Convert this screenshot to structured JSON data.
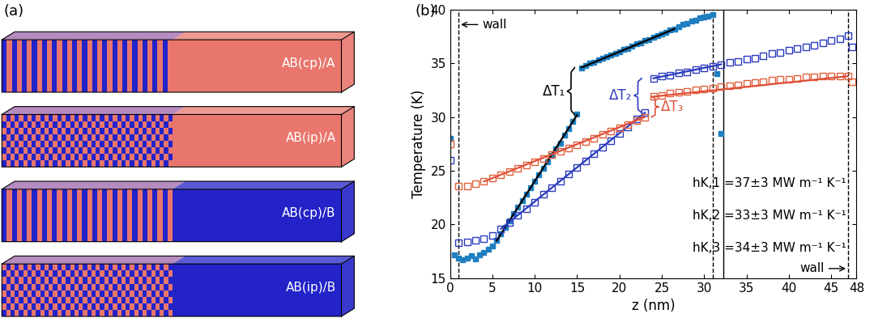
{
  "panel_a": {
    "label": "(a)",
    "boxes": [
      {
        "label": "AB(cp)/A",
        "color": "#e8766d"
      },
      {
        "label": "AB(ip)/A",
        "color": "#e8766d"
      },
      {
        "label": "AB(cp)/B",
        "color": "#2323c8"
      },
      {
        "label": "AB(ip)/B",
        "color": "#2323c8"
      }
    ]
  },
  "chart_data": {
    "type": "scatter",
    "label": "(b)",
    "x_label": "z (nm)",
    "y_label": "Temperature (K)",
    "xlim": [
      0,
      48
    ],
    "xticks": [
      0,
      5,
      10,
      15,
      20,
      25,
      30,
      35,
      40,
      45,
      48
    ],
    "ylim": [
      15,
      40
    ],
    "yticks": [
      15,
      20,
      25,
      30,
      35,
      40
    ],
    "grid": false,
    "series": [
      {
        "color": "#1f7fc0",
        "marker": "filled_square",
        "fit_color": "#000000",
        "x": [
          0.0,
          0.5,
          1.0,
          1.5,
          2.0,
          2.5,
          3.0,
          3.5,
          4.0,
          4.5,
          5.0,
          5.5,
          6.0,
          6.5,
          7.0,
          7.5,
          8.0,
          8.5,
          9.0,
          9.5,
          10.0,
          10.5,
          11.0,
          11.5,
          12.0,
          12.5,
          13.0,
          13.5,
          14.0,
          14.5,
          15.0,
          15.5,
          16.0,
          16.5,
          17.0,
          17.5,
          18.0,
          18.5,
          19.0,
          19.5,
          20.0,
          20.5,
          21.0,
          21.5,
          22.0,
          22.5,
          23.0,
          23.5,
          24.0,
          24.5,
          25.0,
          25.5,
          26.0,
          26.5,
          27.0,
          27.5,
          28.0,
          28.5,
          29.0,
          29.5,
          30.0,
          30.5,
          31.0,
          31.5,
          32.0
        ],
        "values": [
          28.0,
          17.2,
          16.9,
          16.7,
          16.9,
          17.1,
          16.8,
          17.2,
          17.4,
          17.7,
          18.0,
          18.5,
          19.1,
          19.7,
          20.3,
          21.0,
          21.6,
          22.2,
          22.8,
          23.4,
          24.0,
          24.6,
          25.2,
          25.8,
          26.4,
          27.0,
          27.6,
          28.3,
          28.9,
          29.6,
          30.3,
          34.6,
          34.8,
          35.0,
          35.1,
          35.3,
          35.5,
          35.6,
          35.8,
          35.9,
          36.1,
          36.3,
          36.4,
          36.6,
          36.8,
          36.9,
          37.1,
          37.2,
          37.4,
          37.6,
          37.7,
          37.9,
          38.1,
          38.2,
          38.4,
          38.6,
          38.7,
          38.9,
          39.0,
          39.2,
          39.3,
          39.4,
          39.5,
          34.0,
          28.5
        ],
        "fits": [
          {
            "x": [
              5.5,
              15.0
            ],
            "y": [
              18.5,
              30.2
            ]
          },
          {
            "x": [
              15.5,
              26.5
            ],
            "y": [
              34.6,
              38.2
            ]
          }
        ]
      },
      {
        "color": "#2b3bbf",
        "marker": "open_square",
        "fit_color": "#2b3bbf",
        "x": [
          0,
          1,
          2,
          3,
          4,
          5,
          6,
          7,
          8,
          9,
          10,
          11,
          12,
          13,
          14,
          15,
          16,
          17,
          18,
          19,
          20,
          21,
          22,
          23,
          24,
          25,
          26,
          27,
          28,
          29,
          30,
          31,
          32,
          33,
          34,
          35,
          36,
          37,
          38,
          39,
          40,
          41,
          42,
          43,
          44,
          45,
          46,
          47,
          47.5
        ],
        "values": [
          26.0,
          18.3,
          18.4,
          18.5,
          18.7,
          19.0,
          19.6,
          20.2,
          20.9,
          21.5,
          22.1,
          22.8,
          23.4,
          24.0,
          24.7,
          25.3,
          25.9,
          26.6,
          27.2,
          27.8,
          28.5,
          29.1,
          29.8,
          30.4,
          33.6,
          33.8,
          33.9,
          34.1,
          34.2,
          34.4,
          34.6,
          34.7,
          34.9,
          35.1,
          35.2,
          35.4,
          35.5,
          35.7,
          35.9,
          36.0,
          36.2,
          36.4,
          36.5,
          36.7,
          36.9,
          37.1,
          37.3,
          37.6,
          36.5
        ],
        "fits": [
          {
            "x": [
              6,
              23
            ],
            "y": [
              19.6,
              30.4
            ]
          },
          {
            "x": [
              24,
              32
            ],
            "y": [
              33.6,
              34.9
            ]
          }
        ]
      },
      {
        "color": "#e0603a",
        "marker": "open_square",
        "fit_color": "#e0503a",
        "x": [
          0,
          1,
          2,
          3,
          4,
          5,
          6,
          7,
          8,
          9,
          10,
          11,
          12,
          13,
          14,
          15,
          16,
          17,
          18,
          19,
          20,
          21,
          22,
          23,
          24,
          25,
          26,
          27,
          28,
          29,
          30,
          31,
          32,
          33,
          34,
          35,
          36,
          37,
          38,
          39,
          40,
          41,
          42,
          43,
          44,
          45,
          46,
          47,
          47.5
        ],
        "values": [
          27.5,
          23.6,
          23.6,
          23.8,
          24.0,
          24.3,
          24.6,
          24.9,
          25.2,
          25.5,
          25.8,
          26.1,
          26.5,
          26.8,
          27.1,
          27.4,
          27.7,
          28.0,
          28.4,
          28.7,
          29.0,
          29.3,
          29.7,
          30.0,
          31.9,
          32.0,
          32.2,
          32.3,
          32.4,
          32.5,
          32.6,
          32.7,
          32.8,
          32.9,
          33.0,
          33.1,
          33.2,
          33.3,
          33.4,
          33.5,
          33.5,
          33.6,
          33.7,
          33.7,
          33.8,
          33.8,
          33.8,
          33.8,
          33.3
        ],
        "fits": [
          {
            "x": [
              4,
              23
            ],
            "y": [
              24.0,
              30.0
            ]
          },
          {
            "x": [
              24,
              47
            ],
            "y": [
              31.9,
              33.8
            ]
          }
        ]
      }
    ],
    "vlines": [
      {
        "x": 1.0,
        "line_style": "dashed",
        "color": "#000000"
      },
      {
        "x": 31.0,
        "line_style": "dashed",
        "color": "#000000"
      },
      {
        "x": 32.3,
        "line_style": "solid",
        "color": "#000000"
      },
      {
        "x": 47.0,
        "line_style": "dashed",
        "color": "#000000"
      }
    ],
    "wall_labels": [
      {
        "text": "wall",
        "vline": 0
      },
      {
        "text": "wall",
        "vline": 3
      }
    ],
    "delta_labels": [
      {
        "text": "ΔT₁",
        "color": "#000000",
        "series": 0
      },
      {
        "text": "ΔT₂",
        "color": "#2b3bbf",
        "series": 1
      },
      {
        "text": "ΔT₃",
        "color": "#e0503a",
        "series": 2
      }
    ],
    "annotations": [
      "hK,1 =37±3 MW m⁻¹ K⁻¹",
      "hK,2 =33±3 MW m⁻¹ K⁻¹",
      "hK,3 =34±3 MW m⁻¹ K⁻¹"
    ]
  }
}
